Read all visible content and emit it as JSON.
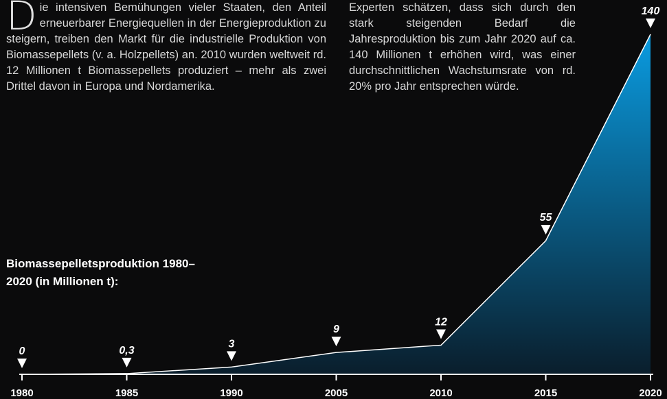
{
  "text": {
    "left_drop_cap": "D",
    "left": "ie intensiven Bemühungen vieler Staaten, den Anteil erneuerbarer Energiequellen in der Energieproduktion zu steigern, treiben den Markt für die industrielle Produktion von Biomassepellets (v. a. Holzpellets) an. 2010 wurden weltweit rd. 12 Millionen t Biomassepellets produziert – mehr als zwei Drittel davon in Europa und Nordamerika.",
    "right": "Experten schätzen, dass sich durch den stark steigenden Bedarf die Jahresproduktion bis zum Jahr 2020 auf ca. 140 Millionen t erhöhen wird, was einer durchschnittlichen Wachstumsrate von rd. 20% pro Jahr entsprechen würde."
  },
  "chart_data": {
    "type": "area",
    "title": "Biomassepelletsproduktion 1980–2020 (in Millionen t):",
    "categories": [
      "1980",
      "1985",
      "1990",
      "2005",
      "2010",
      "2015",
      "2020"
    ],
    "values": [
      0,
      0.3,
      3,
      9,
      12,
      55,
      140
    ],
    "value_labels": [
      "0",
      "0,3",
      "3",
      "9",
      "12",
      "55",
      "140"
    ],
    "color": "#0a93d6",
    "ylim": [
      0,
      140
    ]
  }
}
